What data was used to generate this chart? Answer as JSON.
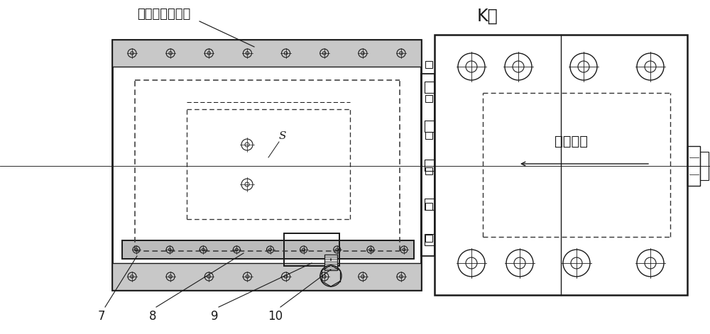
{
  "bg_color": "#ffffff",
  "line_color": "#1a1a1a",
  "dashed_color": "#333333",
  "title_k": "K向",
  "label_sensor": "传感器限制行程",
  "label_piston": "活塞行程",
  "label_s": "S",
  "part_labels": [
    "7",
    "8",
    "9",
    "10"
  ],
  "fig_width": 10.0,
  "fig_height": 4.71,
  "dpi": 100
}
